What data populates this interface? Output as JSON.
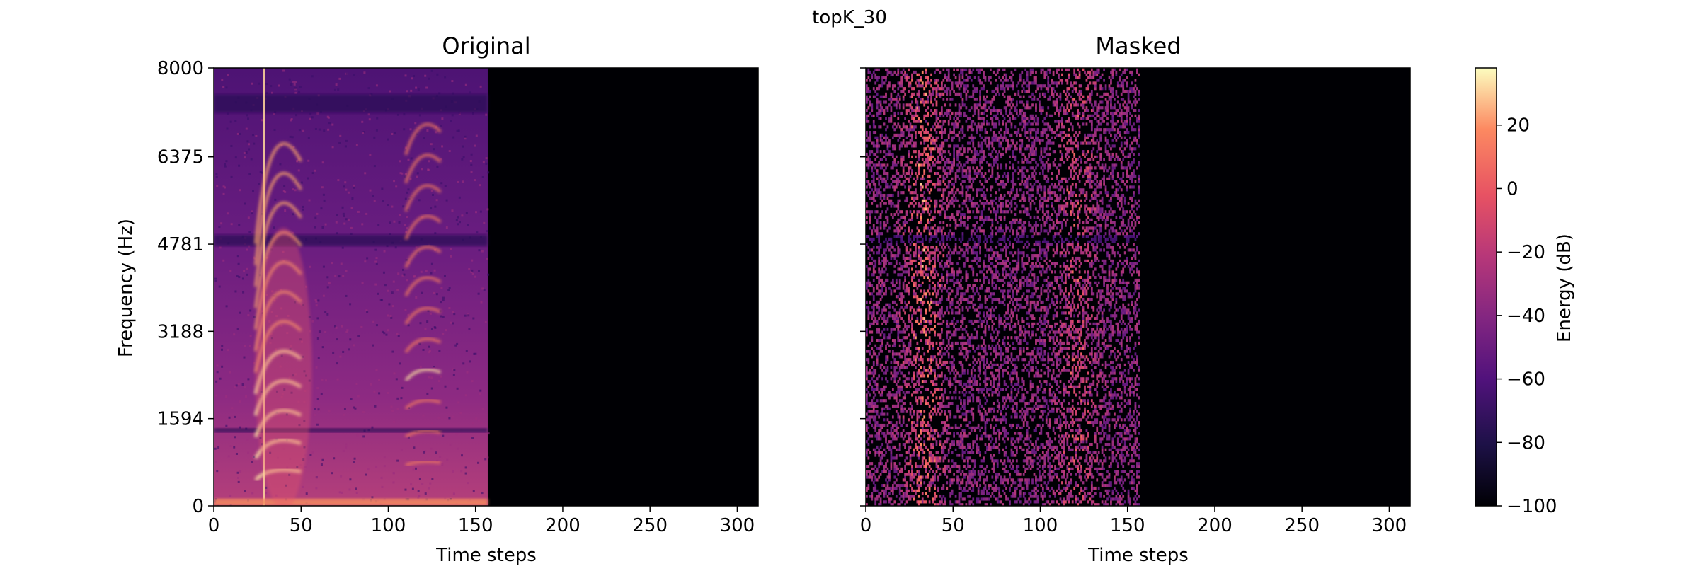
{
  "figure": {
    "suptitle": "topK_30"
  },
  "chart_data": [
    {
      "type": "heatmap",
      "title": "Original",
      "xlabel": "Time steps",
      "ylabel": "Frequency (Hz)",
      "xlim": [
        0,
        312
      ],
      "ylim": [
        0,
        8000
      ],
      "xticks": [
        0,
        50,
        100,
        150,
        200,
        250,
        300
      ],
      "yticks": [
        0,
        1594,
        3188,
        4781,
        6375,
        8000
      ],
      "signal_end_time_step": 157,
      "colormap": "magma",
      "value_range_db": [
        -100,
        38
      ]
    },
    {
      "type": "heatmap",
      "title": "Masked",
      "xlabel": "Time steps",
      "xlim": [
        0,
        312
      ],
      "ylim": [
        0,
        8000
      ],
      "xticks": [
        0,
        50,
        100,
        150,
        200,
        250,
        300
      ],
      "yticks": [
        0,
        1594,
        3188,
        4781,
        6375,
        8000
      ],
      "signal_end_time_step": 157,
      "colormap": "magma",
      "value_range_db": [
        -100,
        38
      ]
    }
  ],
  "colorbar": {
    "label": "Energy (dB)",
    "ticks": [
      -100,
      -80,
      -60,
      -40,
      -20,
      0,
      20
    ],
    "tick_labels": [
      "−100",
      "−80",
      "−60",
      "−40",
      "−20",
      "0",
      "20"
    ],
    "range": [
      -100,
      38
    ],
    "colormap": "magma"
  }
}
